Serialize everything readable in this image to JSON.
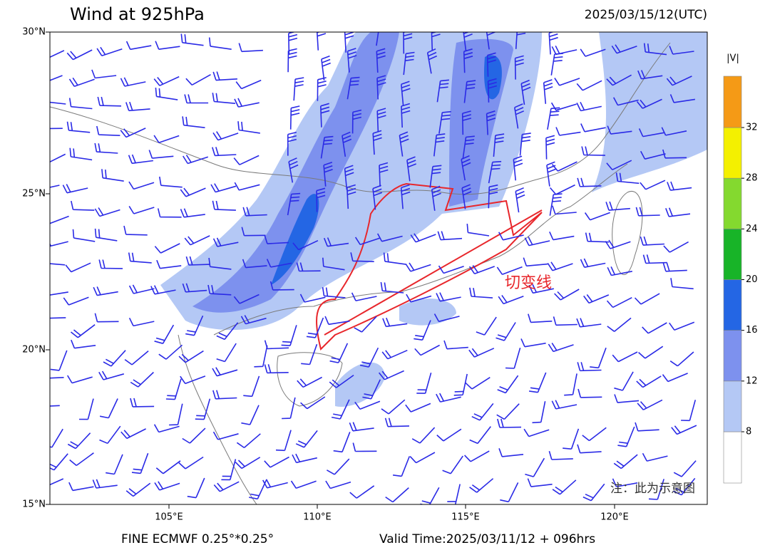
{
  "header": {
    "title": "Wind at 925hPa",
    "datetime": "2025/03/15/12(UTC)"
  },
  "axes": {
    "lat_labels": [
      "30°N",
      "25°N",
      "20°N",
      "15°N"
    ],
    "lon_labels": [
      "105°E",
      "110°E",
      "115°E",
      "120°E"
    ]
  },
  "colorbar": {
    "label": "|V|",
    "ticks": [
      8,
      12,
      16,
      20,
      24,
      28,
      32
    ],
    "colors": [
      "#ffffff",
      "#b4c8f5",
      "#7d91ee",
      "#2466e4",
      "#18b428",
      "#84d92f",
      "#f4f000",
      "#f59a16"
    ]
  },
  "annotation": "切变线",
  "note": "注：此为示意图",
  "footer": {
    "left": "FINE ECMWF 0.25°*0.25°",
    "right": "Valid Time:2025/03/11/12 + 096hrs"
  }
}
